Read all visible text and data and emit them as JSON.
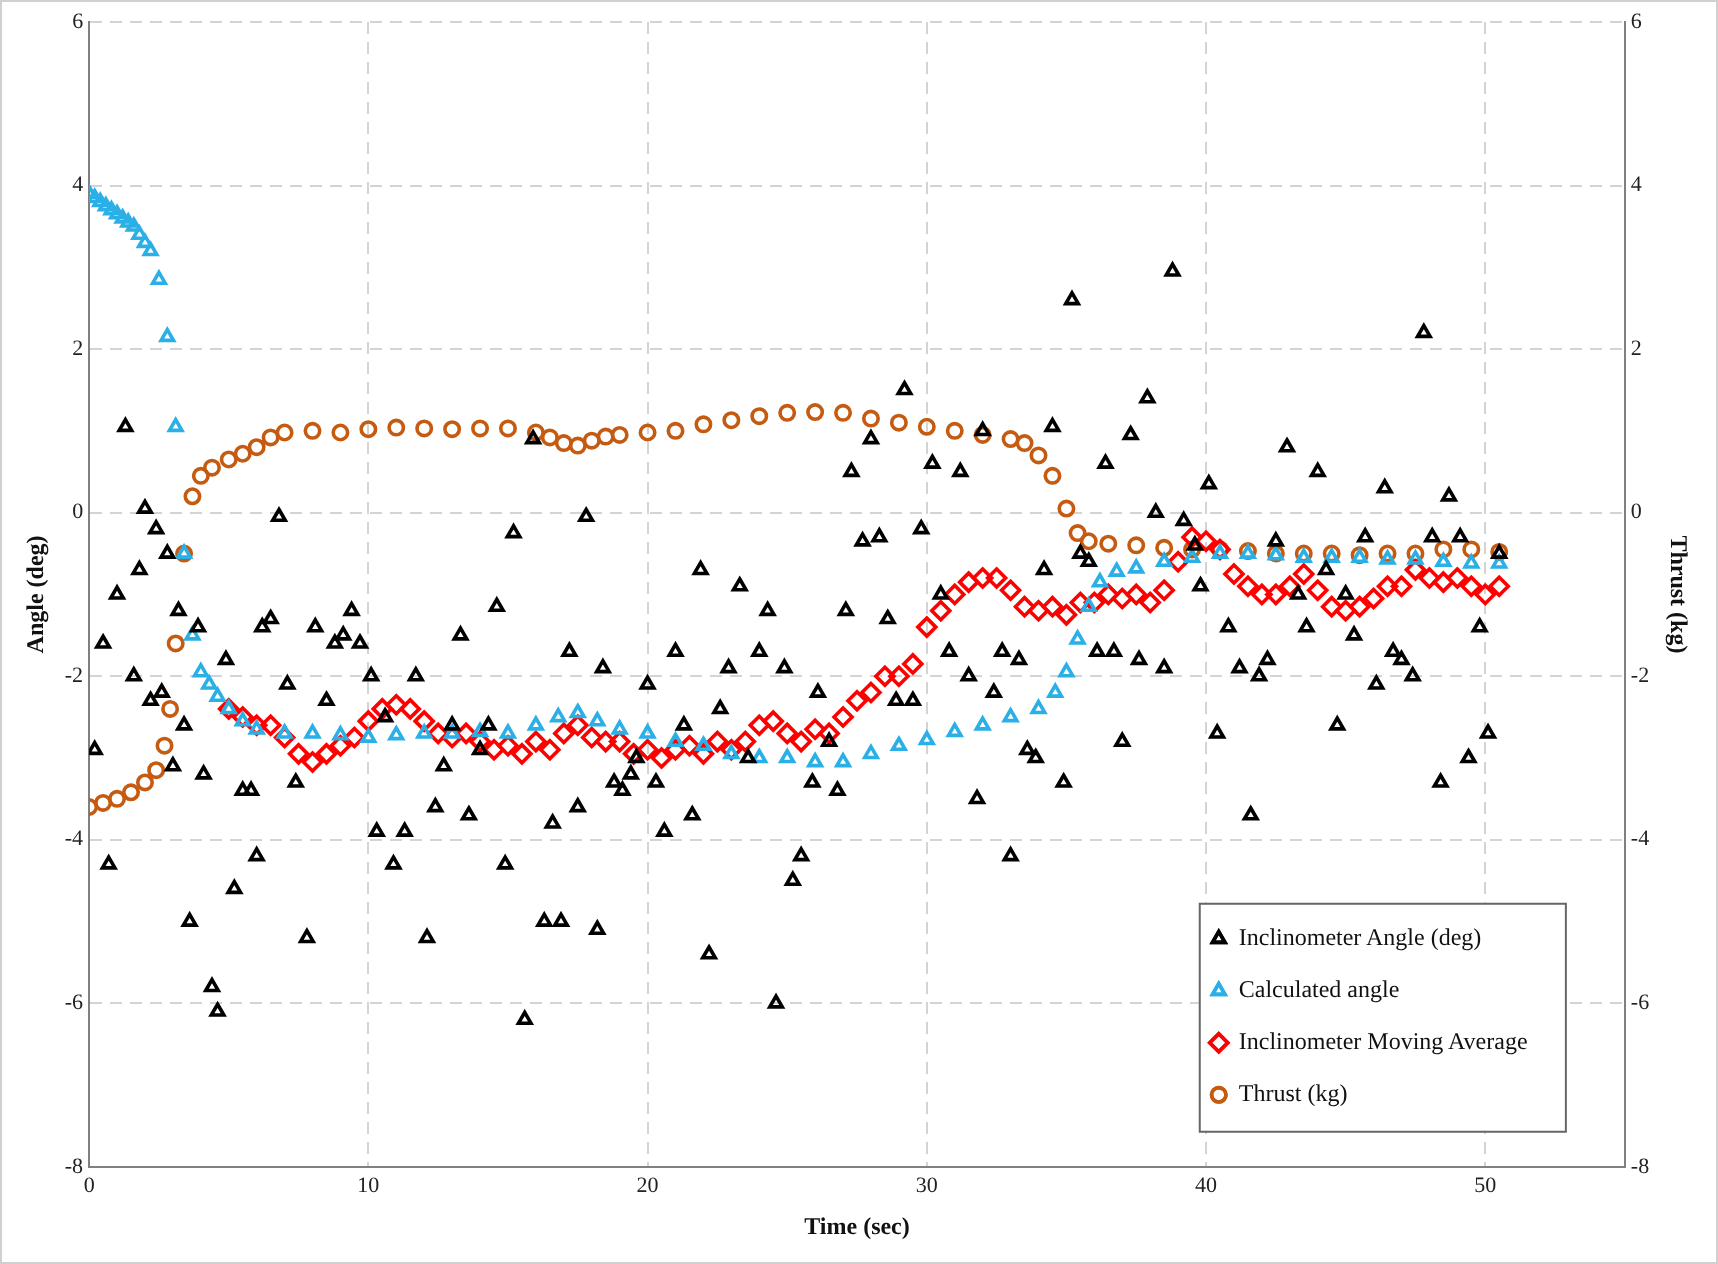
{
  "chart_data": {
    "type": "scatter",
    "xlabel": "Time (sec)",
    "ylabel": "Angle (deg)",
    "y2label": "Thrust (kg)",
    "xlim": [
      0,
      55
    ],
    "xticks": [
      0,
      10,
      20,
      30,
      40,
      50
    ],
    "ylim": [
      -8,
      6
    ],
    "yticks": [
      -8,
      -6,
      -4,
      -2,
      0,
      2,
      4,
      6
    ],
    "y2lim": [
      -8,
      6
    ],
    "y2ticks": [
      -8,
      -6,
      -4,
      -2,
      0,
      2,
      4,
      6
    ],
    "grid": true,
    "legend": "bottom right",
    "series": [
      {
        "name": "Inclinometer Angle (deg)",
        "type": "scatter",
        "marker": "triangle",
        "color": "#000000",
        "x": [
          0.2,
          0.5,
          0.7,
          1.0,
          1.3,
          1.6,
          1.8,
          2.0,
          2.2,
          2.4,
          2.6,
          2.8,
          3.0,
          3.2,
          3.4,
          3.6,
          3.9,
          4.1,
          4.4,
          4.6,
          4.9,
          5.2,
          5.5,
          5.8,
          6.0,
          6.2,
          6.5,
          6.8,
          7.1,
          7.4,
          7.8,
          8.1,
          8.5,
          8.8,
          9.1,
          9.4,
          9.7,
          10.1,
          10.3,
          10.6,
          10.9,
          11.3,
          11.7,
          12.1,
          12.4,
          12.7,
          13.0,
          13.3,
          13.6,
          14.0,
          14.3,
          14.6,
          14.9,
          15.2,
          15.6,
          15.9,
          16.3,
          16.6,
          16.9,
          17.2,
          17.5,
          17.8,
          18.2,
          18.4,
          18.8,
          19.1,
          19.4,
          19.6,
          20.0,
          20.3,
          20.6,
          21.0,
          21.3,
          21.6,
          21.9,
          22.2,
          22.6,
          22.9,
          23.3,
          23.6,
          24.0,
          24.3,
          24.6,
          24.9,
          25.2,
          25.5,
          25.9,
          26.1,
          26.5,
          26.8,
          27.1,
          27.3,
          27.7,
          28.0,
          28.3,
          28.6,
          28.9,
          29.2,
          29.5,
          29.8,
          30.2,
          30.5,
          30.8,
          31.2,
          31.5,
          31.8,
          32.0,
          32.4,
          32.7,
          33.0,
          33.3,
          33.6,
          33.9,
          34.2,
          34.5,
          34.9,
          35.2,
          35.5,
          35.8,
          36.1,
          36.4,
          36.7,
          37.0,
          37.3,
          37.6,
          37.9,
          38.2,
          38.5,
          38.8,
          39.2,
          39.6,
          39.8,
          40.1,
          40.4,
          40.8,
          41.2,
          41.6,
          41.9,
          42.2,
          42.5,
          42.9,
          43.3,
          43.6,
          44.0,
          44.3,
          44.7,
          45.0,
          45.3,
          45.7,
          46.1,
          46.4,
          46.7,
          47.0,
          47.4,
          47.8,
          48.1,
          48.4,
          48.7,
          49.1,
          49.4,
          49.8,
          50.1,
          50.5
        ],
        "values": [
          -2.9,
          -1.6,
          -4.3,
          -1.0,
          1.05,
          -2.0,
          -0.7,
          0.05,
          -2.3,
          -0.2,
          -2.2,
          -0.5,
          -3.1,
          -1.2,
          -2.6,
          -5.0,
          -1.4,
          -3.2,
          -5.8,
          -6.1,
          -1.8,
          -4.6,
          -3.4,
          -3.4,
          -4.2,
          -1.4,
          -1.3,
          -0.05,
          -2.1,
          -3.3,
          -5.2,
          -1.4,
          -2.3,
          -1.6,
          -1.5,
          -1.2,
          -1.6,
          -2.0,
          -3.9,
          -2.5,
          -4.3,
          -3.9,
          -2.0,
          -5.2,
          -3.6,
          -3.1,
          -2.6,
          -1.5,
          -3.7,
          -2.9,
          -2.6,
          -1.15,
          -4.3,
          -0.25,
          -6.2,
          0.9,
          -5.0,
          -3.8,
          -5.0,
          -1.7,
          -3.6,
          -0.05,
          -5.1,
          -1.9,
          -3.3,
          -3.4,
          -3.2,
          -3.0,
          -2.1,
          -3.3,
          -3.9,
          -1.7,
          -2.6,
          -3.7,
          -0.7,
          -5.4,
          -2.4,
          -1.9,
          -0.9,
          -3.0,
          -1.7,
          -1.2,
          -6.0,
          -1.9,
          -4.5,
          -4.2,
          -3.3,
          -2.2,
          -2.8,
          -3.4,
          -1.2,
          0.5,
          -0.35,
          0.9,
          -0.3,
          -1.3,
          -2.3,
          1.5,
          -2.3,
          -0.2,
          0.6,
          -1.0,
          -1.7,
          0.5,
          -2.0,
          -3.5,
          1.0,
          -2.2,
          -1.7,
          -4.2,
          -1.8,
          -2.9,
          -3.0,
          -0.7,
          1.05,
          -3.3,
          2.6,
          -0.5,
          -0.6,
          -1.7,
          0.6,
          -1.7,
          -2.8,
          0.95,
          -1.8,
          1.4,
          0.0,
          -1.9,
          2.95,
          -0.1,
          -0.4,
          -0.9,
          0.35,
          -2.7,
          -1.4,
          -1.9,
          -3.7,
          -2.0,
          -1.8,
          -0.35,
          0.8,
          -1.0,
          -1.4,
          0.5,
          -0.7,
          -2.6,
          -1.0,
          -1.5,
          -0.3,
          -2.1,
          0.3,
          -1.7,
          -1.8,
          -2.0,
          2.2,
          -0.3,
          -3.3,
          0.2,
          -0.3,
          -3.0,
          -1.4,
          -2.7,
          -0.5
        ]
      },
      {
        "name": "Calculated angle",
        "type": "scatter",
        "marker": "triangle",
        "color": "#2ab0e6",
        "x": [
          0,
          0.2,
          0.4,
          0.6,
          0.8,
          1.0,
          1.2,
          1.4,
          1.6,
          1.8,
          2.0,
          2.2,
          2.5,
          2.8,
          3.1,
          3.4,
          3.7,
          4.0,
          4.3,
          4.6,
          5.0,
          5.5,
          6.0,
          7.0,
          8.0,
          9.0,
          10.0,
          11.0,
          12.0,
          13.0,
          14.0,
          15.0,
          16.0,
          16.8,
          17.5,
          18.2,
          19.0,
          20.0,
          21.0,
          22.0,
          23.0,
          24.0,
          25.0,
          26.0,
          27.0,
          28.0,
          29.0,
          30.0,
          31.0,
          32.0,
          33.0,
          34.0,
          34.6,
          35.0,
          35.4,
          35.8,
          36.2,
          36.8,
          37.5,
          38.5,
          39.5,
          40.5,
          41.5,
          42.5,
          43.5,
          44.5,
          45.5,
          46.5,
          47.5,
          48.5,
          49.5,
          50.5
        ],
        "values": [
          3.9,
          3.85,
          3.8,
          3.75,
          3.7,
          3.65,
          3.6,
          3.55,
          3.5,
          3.4,
          3.3,
          3.2,
          2.85,
          2.15,
          1.05,
          -0.5,
          -1.5,
          -1.95,
          -2.1,
          -2.25,
          -2.4,
          -2.55,
          -2.65,
          -2.7,
          -2.7,
          -2.72,
          -2.75,
          -2.72,
          -2.7,
          -2.7,
          -2.68,
          -2.7,
          -2.6,
          -2.5,
          -2.45,
          -2.55,
          -2.65,
          -2.7,
          -2.8,
          -2.85,
          -2.95,
          -3.0,
          -3.0,
          -3.05,
          -3.05,
          -2.95,
          -2.85,
          -2.78,
          -2.68,
          -2.6,
          -2.5,
          -2.4,
          -2.2,
          -1.95,
          -1.55,
          -1.15,
          -0.85,
          -0.72,
          -0.68,
          -0.6,
          -0.55,
          -0.5,
          -0.5,
          -0.52,
          -0.55,
          -0.55,
          -0.55,
          -0.57,
          -0.57,
          -0.6,
          -0.62,
          -0.62
        ]
      },
      {
        "name": "Inclinometer Moving Average",
        "type": "scatter",
        "marker": "diamond",
        "color": "#ff0000",
        "x": [
          5.0,
          5.5,
          6.0,
          6.5,
          7.0,
          7.5,
          8.0,
          8.5,
          9.0,
          9.5,
          10.0,
          10.5,
          11.0,
          11.5,
          12.0,
          12.5,
          13.0,
          13.5,
          14.0,
          14.5,
          15.0,
          15.5,
          16.0,
          16.5,
          17.0,
          17.5,
          18.0,
          18.5,
          19.0,
          19.5,
          20.0,
          20.5,
          21.0,
          21.5,
          22.0,
          22.5,
          23.0,
          23.5,
          24.0,
          24.5,
          25.0,
          25.5,
          26.0,
          26.5,
          27.0,
          27.5,
          28.0,
          28.5,
          29.0,
          29.5,
          30.0,
          30.5,
          31.0,
          31.5,
          32.0,
          32.5,
          33.0,
          33.5,
          34.0,
          34.5,
          35.0,
          35.5,
          36.0,
          36.5,
          37.0,
          37.5,
          38.0,
          38.5,
          39.0,
          39.5,
          40.0,
          40.5,
          41.0,
          41.5,
          42.0,
          42.5,
          43.0,
          43.5,
          44.0,
          44.5,
          45.0,
          45.5,
          46.0,
          46.5,
          47.0,
          47.5,
          48.0,
          48.5,
          49.0,
          49.5,
          50.0,
          50.5
        ],
        "values": [
          -2.4,
          -2.5,
          -2.6,
          -2.6,
          -2.75,
          -2.95,
          -3.05,
          -2.95,
          -2.85,
          -2.75,
          -2.55,
          -2.4,
          -2.35,
          -2.4,
          -2.55,
          -2.7,
          -2.75,
          -2.7,
          -2.8,
          -2.9,
          -2.85,
          -2.95,
          -2.8,
          -2.9,
          -2.7,
          -2.6,
          -2.75,
          -2.8,
          -2.8,
          -2.95,
          -2.9,
          -3.0,
          -2.9,
          -2.85,
          -2.95,
          -2.8,
          -2.9,
          -2.8,
          -2.6,
          -2.55,
          -2.7,
          -2.8,
          -2.65,
          -2.7,
          -2.5,
          -2.3,
          -2.2,
          -2.0,
          -2.0,
          -1.85,
          -1.4,
          -1.2,
          -1.0,
          -0.85,
          -0.8,
          -0.8,
          -0.95,
          -1.15,
          -1.2,
          -1.15,
          -1.25,
          -1.1,
          -1.1,
          -1.0,
          -1.05,
          -1.0,
          -1.1,
          -0.95,
          -0.6,
          -0.3,
          -0.35,
          -0.45,
          -0.75,
          -0.9,
          -1.0,
          -1.0,
          -0.9,
          -0.75,
          -0.95,
          -1.15,
          -1.2,
          -1.15,
          -1.05,
          -0.9,
          -0.9,
          -0.7,
          -0.8,
          -0.85,
          -0.8,
          -0.9,
          -1.0,
          -0.9
        ]
      },
      {
        "name": "Thrust (kg)",
        "type": "scatter",
        "marker": "circle",
        "color": "#c55a11",
        "axis": "y2",
        "x": [
          0,
          0.5,
          1.0,
          1.5,
          2.0,
          2.4,
          2.7,
          2.9,
          3.1,
          3.4,
          3.7,
          4.0,
          4.4,
          5.0,
          5.5,
          6.0,
          6.5,
          7.0,
          8.0,
          9.0,
          10.0,
          11.0,
          12.0,
          13.0,
          14.0,
          15.0,
          16.0,
          16.5,
          17.0,
          17.5,
          18.0,
          18.5,
          19.0,
          20.0,
          21.0,
          22.0,
          23.0,
          24.0,
          25.0,
          26.0,
          27.0,
          28.0,
          29.0,
          30.0,
          31.0,
          32.0,
          33.0,
          33.5,
          34.0,
          34.5,
          35.0,
          35.4,
          35.8,
          36.5,
          37.5,
          38.5,
          39.5,
          40.5,
          41.5,
          42.5,
          43.5,
          44.5,
          45.5,
          46.5,
          47.5,
          48.5,
          49.5,
          50.5
        ],
        "values": [
          -3.6,
          -3.55,
          -3.5,
          -3.42,
          -3.3,
          -3.15,
          -2.85,
          -2.4,
          -1.6,
          -0.5,
          0.2,
          0.45,
          0.55,
          0.65,
          0.72,
          0.8,
          0.92,
          0.98,
          1.0,
          0.98,
          1.02,
          1.04,
          1.03,
          1.02,
          1.03,
          1.03,
          0.98,
          0.92,
          0.85,
          0.82,
          0.88,
          0.93,
          0.95,
          0.98,
          1.0,
          1.08,
          1.13,
          1.18,
          1.22,
          1.23,
          1.22,
          1.15,
          1.1,
          1.05,
          1.0,
          0.95,
          0.9,
          0.85,
          0.7,
          0.45,
          0.05,
          -0.25,
          -0.35,
          -0.38,
          -0.4,
          -0.43,
          -0.45,
          -0.45,
          -0.47,
          -0.5,
          -0.5,
          -0.5,
          -0.52,
          -0.5,
          -0.5,
          -0.45,
          -0.45,
          -0.48
        ]
      }
    ]
  }
}
